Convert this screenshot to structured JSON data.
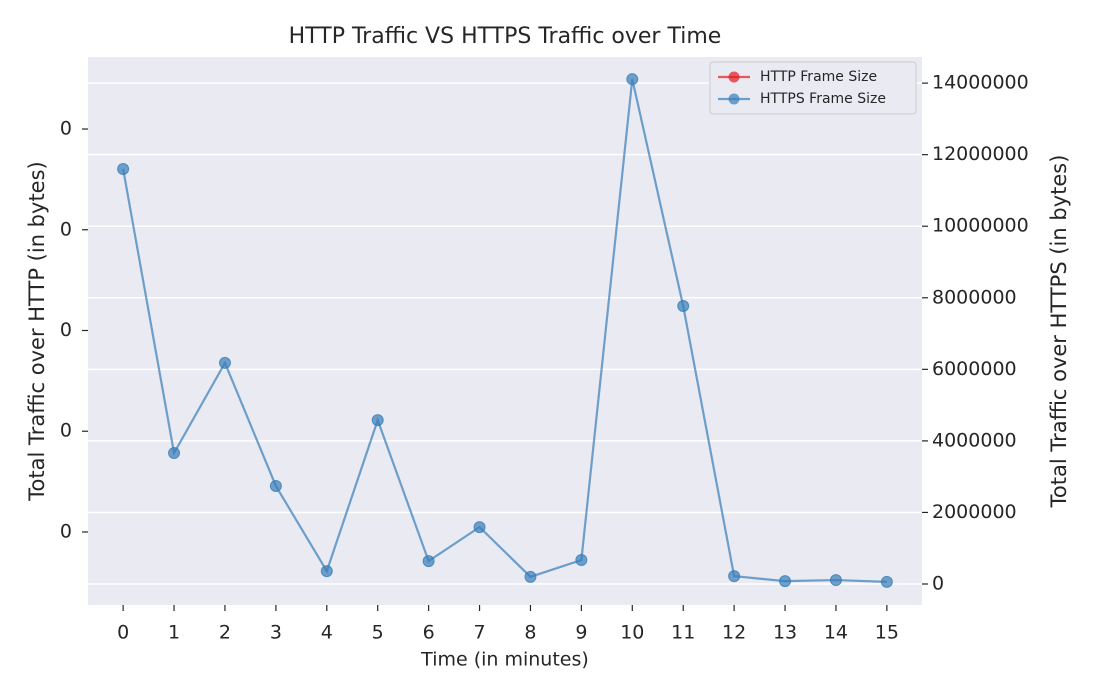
{
  "chart_data": {
    "type": "line",
    "title": "HTTP Traffic VS HTTPS Traffic over Time",
    "xlabel": "Time (in minutes)",
    "ylabel": "Total Traffic over HTTP (in bytes)",
    "y2label": "Total Traffic over HTTPS (in bytes)",
    "x": [
      0,
      1,
      2,
      3,
      4,
      5,
      6,
      7,
      8,
      9,
      10,
      11,
      12,
      13,
      14,
      15
    ],
    "xlim": [
      -0.69,
      15.69
    ],
    "xticks": [
      0,
      1,
      2,
      3,
      4,
      5,
      6,
      7,
      8,
      9,
      10,
      11,
      12,
      13,
      14,
      15
    ],
    "ylim": [
      -0.0545,
      0.0543
    ],
    "yticks": [
      {
        "value": -0.04,
        "label": "0"
      },
      {
        "value": -0.02,
        "label": "0"
      },
      {
        "value": 0,
        "label": "0"
      },
      {
        "value": 0.02,
        "label": "0"
      },
      {
        "value": 0.04,
        "label": "0"
      }
    ],
    "y2lim": [
      -587000,
      14730000
    ],
    "y2ticks": [
      0,
      2000000,
      4000000,
      6000000,
      8000000,
      10000000,
      12000000,
      14000000
    ],
    "grid": true,
    "legend": "upper right",
    "series": [
      {
        "name": "HTTP Frame Size",
        "color": "#e41a1c",
        "values": [
          null,
          null,
          null,
          null,
          null,
          null,
          null,
          null,
          null,
          null,
          null,
          null,
          null,
          null,
          null,
          null
        ]
      },
      {
        "name": "HTTPS Frame Size",
        "color": "#377eb8",
        "axis": "y2",
        "values": [
          11600000,
          3660000,
          6180000,
          2740000,
          360000,
          4580000,
          640000,
          1590000,
          200000,
          670000,
          14110000,
          7770000,
          220000,
          80000,
          110000,
          60000
        ]
      }
    ]
  }
}
